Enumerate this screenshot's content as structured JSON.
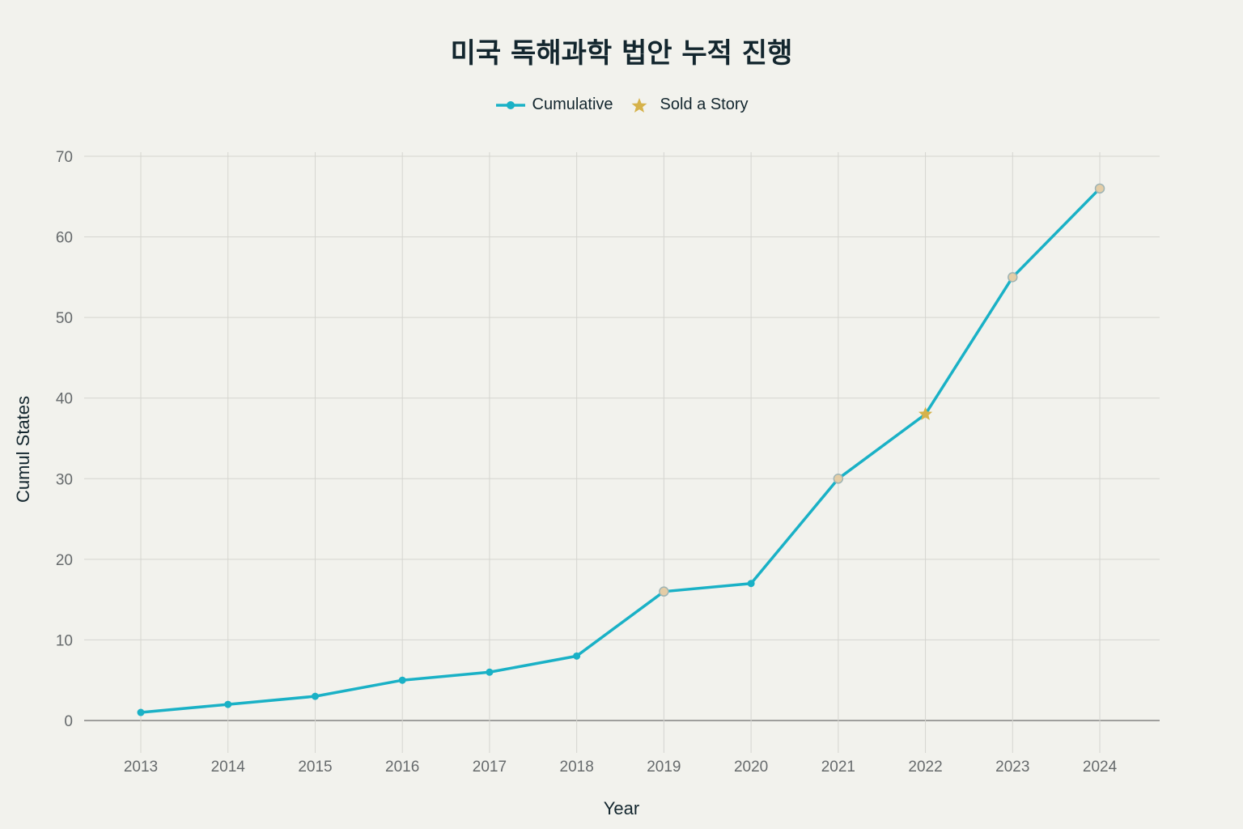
{
  "title": "미국 독해과학 법안 누적 진행",
  "legend": {
    "items": [
      {
        "label": "Cumulative",
        "icon": "line-marker-icon",
        "color": "#1ab1c6"
      },
      {
        "label": "Sold a Story",
        "icon": "star-icon",
        "color": "#d6b24a"
      }
    ]
  },
  "colors": {
    "background": "#f2f2ed",
    "line": "#1ab1c6",
    "highlight_marker_fill": "#e4cda6",
    "highlight_marker_stroke": "#9fb4b4",
    "star": "#d6b24a",
    "grid": "#d5d5d0",
    "zero_line": "#6e6e6e"
  },
  "chart_data": {
    "type": "line",
    "title": "미국 독해과학 법안 누적 진행",
    "xlabel": "Year",
    "ylabel": "Cumul States",
    "x": [
      2013,
      2014,
      2015,
      2016,
      2017,
      2018,
      2019,
      2020,
      2021,
      2022,
      2023,
      2024
    ],
    "series": [
      {
        "name": "Cumulative",
        "values": [
          1,
          2,
          3,
          5,
          6,
          8,
          16,
          17,
          30,
          38,
          55,
          66
        ]
      }
    ],
    "highlighted_points": [
      2019,
      2021,
      2023,
      2024
    ],
    "annotations": [
      {
        "name": "Sold a Story",
        "x": 2022,
        "y": 38,
        "marker": "star"
      }
    ],
    "ylim": [
      0,
      70
    ],
    "yticks": [
      0,
      10,
      20,
      30,
      40,
      50,
      60,
      70
    ],
    "grid": true,
    "legend_position": "top-center"
  }
}
